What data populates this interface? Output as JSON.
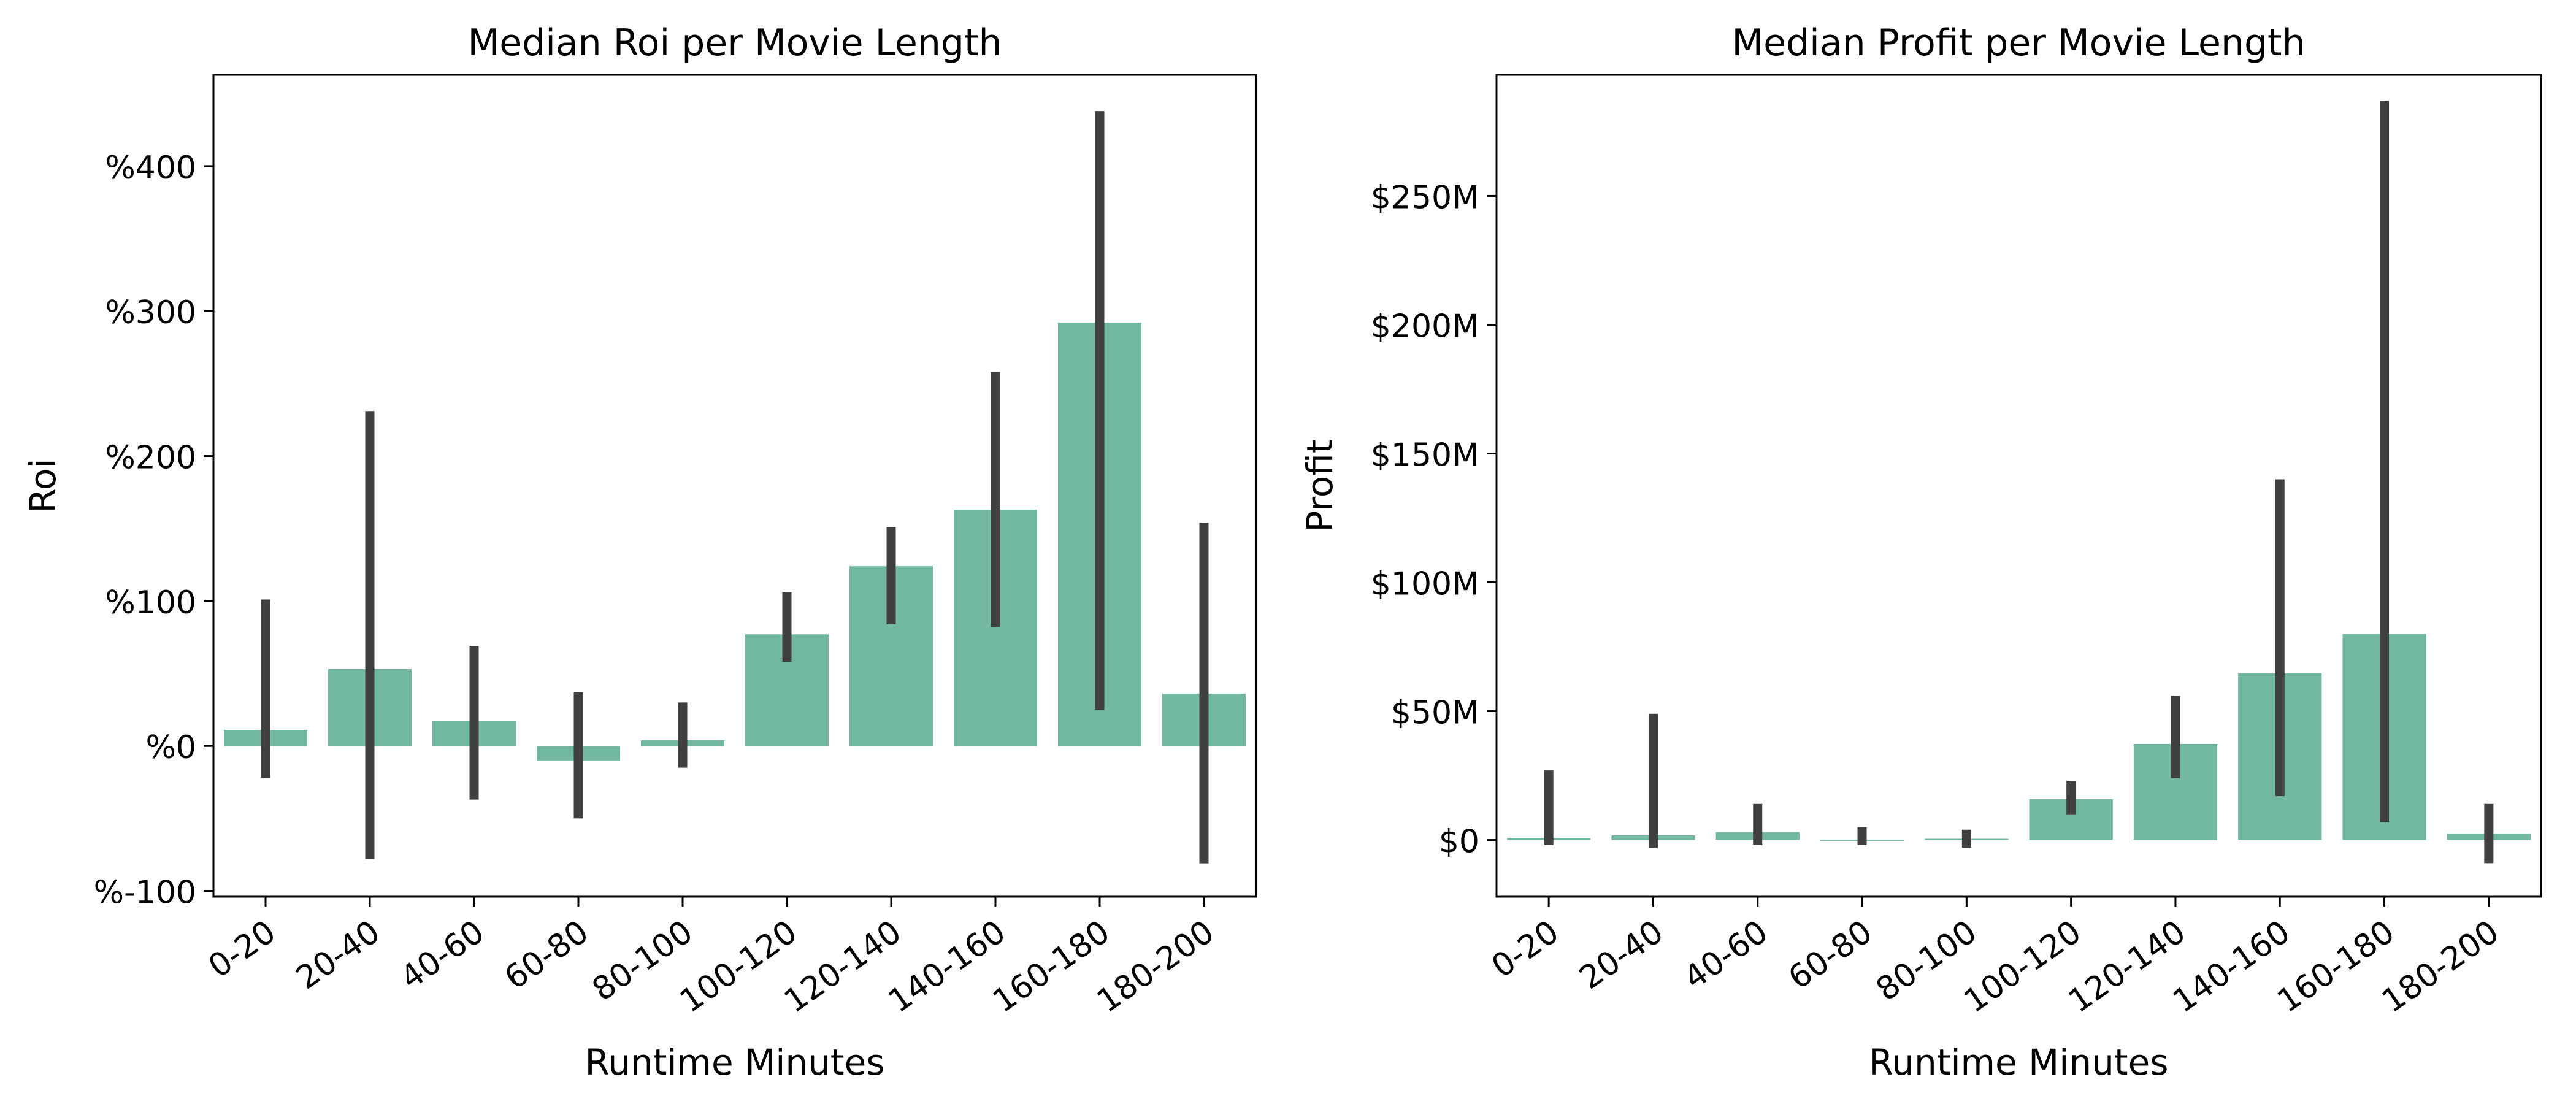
{
  "chart_data": [
    {
      "type": "bar",
      "title": "Median Roi per Movie Length",
      "xlabel": "Runtime Minutes",
      "ylabel": "Roi",
      "categories": [
        "0-20",
        "20-40",
        "40-60",
        "60-80",
        "80-100",
        "100-120",
        "120-140",
        "140-160",
        "160-180",
        "180-200"
      ],
      "values": [
        11,
        53,
        17,
        -10,
        4,
        77,
        124,
        163,
        292,
        36
      ],
      "error_low": [
        -22,
        -78,
        -37,
        -50,
        -15,
        58,
        84,
        82,
        25,
        -81
      ],
      "error_high": [
        101,
        231,
        69,
        37,
        30,
        106,
        151,
        258,
        438,
        154
      ],
      "yticks": [
        -100,
        0,
        100,
        200,
        300,
        400
      ],
      "ytick_labels": [
        "%-100",
        "%0",
        "%100",
        "%200",
        "%300",
        "%400"
      ],
      "ylim": [
        -104,
        463
      ],
      "bar_color": "#72b8a1",
      "error_color": "#404040"
    },
    {
      "type": "bar",
      "title": "Median Profit per Movie Length",
      "xlabel": "Runtime Minutes",
      "ylabel": "Profit",
      "categories": [
        "0-20",
        "20-40",
        "40-60",
        "60-80",
        "80-100",
        "100-120",
        "120-140",
        "140-160",
        "160-180",
        "180-200"
      ],
      "values": [
        0.8,
        1.8,
        3.1,
        0.1,
        0.5,
        15.9,
        37.3,
        64.7,
        80.0,
        2.4
      ],
      "error_low": [
        -2,
        -3,
        -2,
        -2,
        -3,
        10,
        24,
        17,
        7,
        -9
      ],
      "error_high": [
        27,
        49,
        14,
        5,
        4,
        23,
        56,
        140,
        287,
        14
      ],
      "yticks": [
        0,
        50,
        100,
        150,
        200,
        250
      ],
      "ytick_labels": [
        "$0",
        "$50M",
        "$100M",
        "$150M",
        "$200M",
        "$250M"
      ],
      "ylim": [
        -22,
        297
      ],
      "bar_color": "#72b8a1",
      "error_color": "#404040"
    }
  ]
}
